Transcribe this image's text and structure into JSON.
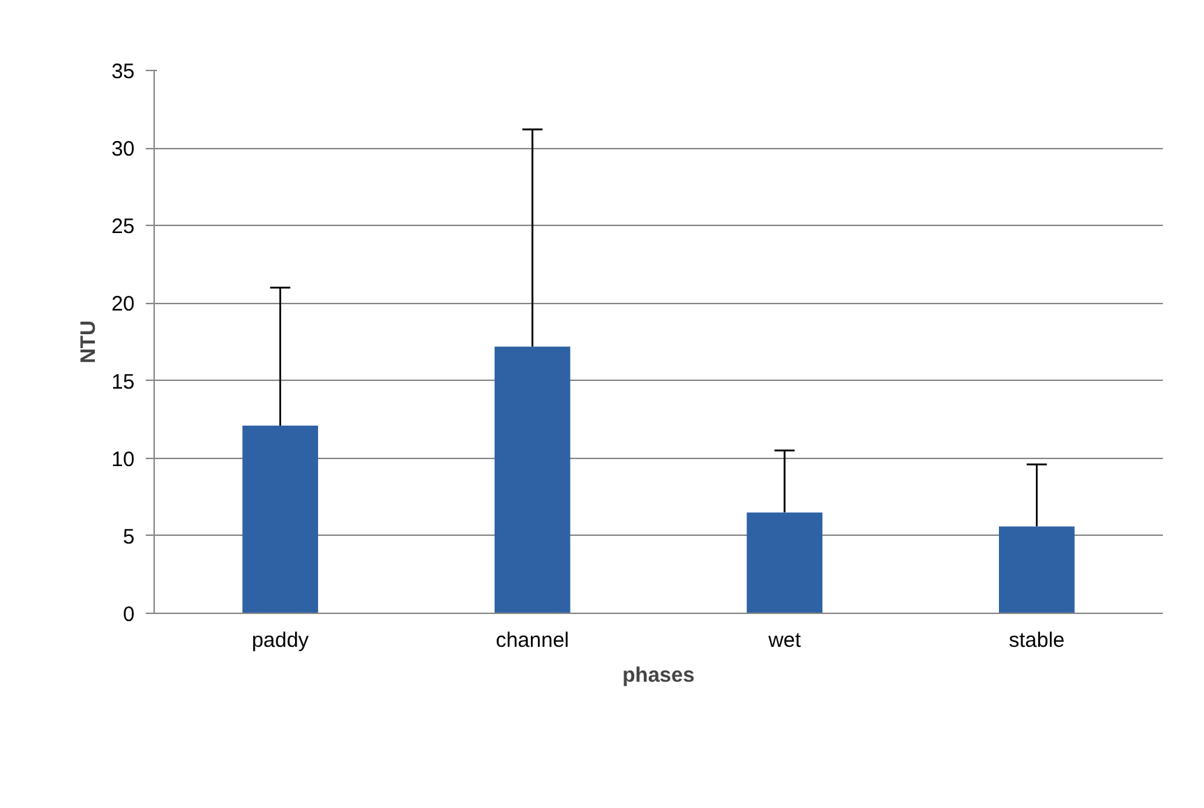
{
  "chart_data": {
    "type": "bar",
    "xlabel": "phases",
    "ylabel": "NTU",
    "categories": [
      "paddy",
      "channel",
      "wet",
      "stable"
    ],
    "values": [
      12.1,
      17.2,
      6.5,
      5.6
    ],
    "errors": [
      [
        12.1,
        21.0
      ],
      [
        17.2,
        31.2
      ],
      [
        6.5,
        10.5
      ],
      [
        5.6,
        9.6
      ]
    ],
    "color": "#2e62a4",
    "ylim": [
      0,
      35
    ],
    "yticks": [
      0,
      5,
      10,
      15,
      20,
      25,
      30,
      35
    ],
    "grid": "y"
  }
}
